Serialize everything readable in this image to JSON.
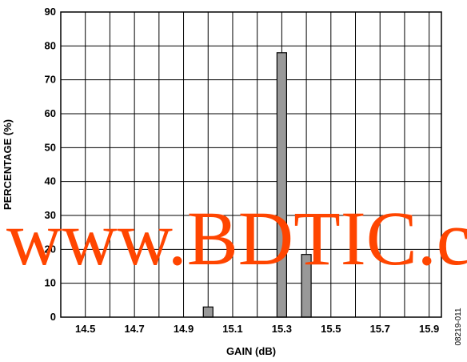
{
  "chart_data": {
    "type": "bar",
    "title": "",
    "xlabel": "GAIN (dB)",
    "ylabel": "PERCENTAGE (%)",
    "xlim": [
      14.4,
      15.95
    ],
    "ylim": [
      0,
      90
    ],
    "x_ticks": [
      14.5,
      14.7,
      14.9,
      15.1,
      15.3,
      15.5,
      15.7,
      15.9
    ],
    "y_ticks": [
      0,
      10,
      20,
      30,
      40,
      50,
      60,
      70,
      80,
      90
    ],
    "grid": true,
    "bar_color": "#999999",
    "bars": [
      {
        "x": 15.0,
        "value": 3
      },
      {
        "x": 15.3,
        "value": 78
      },
      {
        "x": 15.4,
        "value": 18.5
      }
    ]
  },
  "watermark": "www.BDTIC.com",
  "watermark_color": "#ff4500",
  "figure_id": "08219-011"
}
